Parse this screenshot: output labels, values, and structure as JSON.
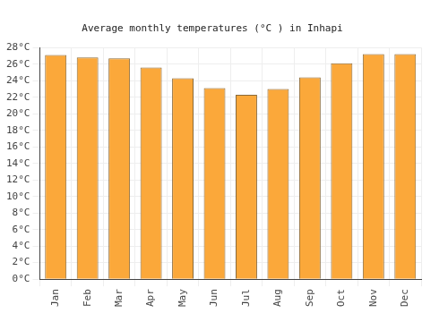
{
  "chart_data": {
    "type": "bar",
    "title": "Average monthly temperatures (°C ) in Inhapi",
    "categories": [
      "Jan",
      "Feb",
      "Mar",
      "Apr",
      "May",
      "Jun",
      "Jul",
      "Aug",
      "Sep",
      "Oct",
      "Nov",
      "Dec"
    ],
    "values": [
      27.1,
      26.8,
      26.7,
      25.6,
      24.3,
      23.1,
      22.3,
      23.0,
      24.4,
      26.1,
      27.2,
      27.2
    ],
    "color": "#fba83a",
    "ylim": [
      0,
      28
    ],
    "yticks": [
      {
        "value": 0,
        "label": "0°C"
      },
      {
        "value": 2,
        "label": "2°C"
      },
      {
        "value": 4,
        "label": "4°C"
      },
      {
        "value": 6,
        "label": "6°C"
      },
      {
        "value": 8,
        "label": "8°C"
      },
      {
        "value": 10,
        "label": "10°C"
      },
      {
        "value": 12,
        "label": "12°C"
      },
      {
        "value": 14,
        "label": "14°C"
      },
      {
        "value": 16,
        "label": "16°C"
      },
      {
        "value": 18,
        "label": "18°C"
      },
      {
        "value": 20,
        "label": "20°C"
      },
      {
        "value": 22,
        "label": "22°C"
      },
      {
        "value": 24,
        "label": "24°C"
      },
      {
        "value": 26,
        "label": "26°C"
      },
      {
        "value": 28,
        "label": "28°C"
      }
    ],
    "grid": true
  }
}
